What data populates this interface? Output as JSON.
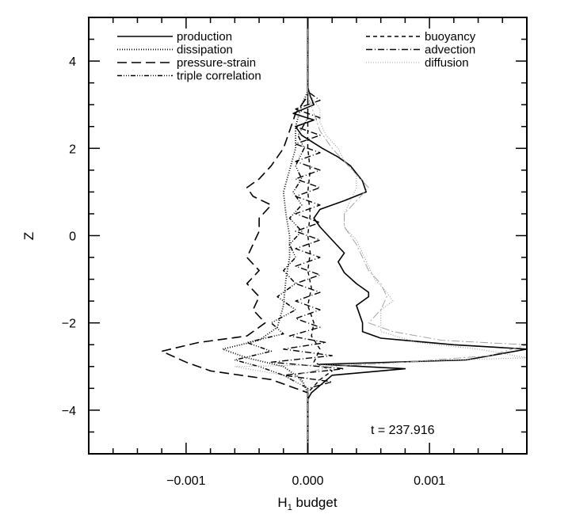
{
  "chart_data": {
    "type": "line",
    "xlabel": "H",
    "xlabel_subscript": "1",
    "xlabel_suffix": " budget",
    "ylabel": "Z",
    "xlim": [
      -0.0018,
      0.0018
    ],
    "ylim": [
      -5,
      5
    ],
    "x_ticks": [
      -0.001,
      0.0,
      0.001
    ],
    "x_tick_labels": [
      "−0.001",
      "0.000",
      "0.001"
    ],
    "y_ticks": [
      -4,
      -2,
      0,
      2,
      4
    ],
    "y_tick_labels": [
      "−4",
      "−2",
      "0",
      "2",
      "4"
    ],
    "annotation": "t = 237.916",
    "legend_placement": "top",
    "series": [
      {
        "name": "production",
        "dash": "solid",
        "color": "#000000",
        "width": 1.6,
        "points": [
          [
            0,
            -5
          ],
          [
            0,
            -3.75
          ],
          [
            3e-05,
            -3.6
          ],
          [
            0.0002,
            -3.2
          ],
          [
            0.0008,
            -3.05
          ],
          [
            0.0001,
            -2.95
          ],
          [
            0.0013,
            -2.85
          ],
          [
            0.0016,
            -2.7
          ],
          [
            0.0018,
            -2.6
          ],
          [
            0.0012,
            -2.5
          ],
          [
            0.0006,
            -2.35
          ],
          [
            0.00045,
            -2.2
          ],
          [
            0.00045,
            -2.0
          ],
          [
            0.0004,
            -1.6
          ],
          [
            0.0005,
            -1.4
          ],
          [
            0.0005,
            -1.3
          ],
          [
            0.0004,
            -1.1
          ],
          [
            0.0003,
            -0.85
          ],
          [
            0.00025,
            -0.6
          ],
          [
            0.0003,
            -0.4
          ],
          [
            0.0002,
            -0.1
          ],
          [
            0.0001,
            0.2
          ],
          [
            5e-05,
            0.4
          ],
          [
            0.0001,
            0.6
          ],
          [
            0.0003,
            0.8
          ],
          [
            0.00048,
            1.0
          ],
          [
            0.00045,
            1.25
          ],
          [
            0.00035,
            1.6
          ],
          [
            0.00025,
            1.8
          ],
          [
            0.00012,
            2.0
          ],
          [
            -5e-05,
            2.3
          ],
          [
            -0.0001,
            2.5
          ],
          [
            5e-05,
            2.65
          ],
          [
            -0.00012,
            2.8
          ],
          [
            5e-05,
            3.0
          ],
          [
            2e-05,
            3.2
          ],
          [
            0,
            3.4
          ],
          [
            0,
            5
          ]
        ]
      },
      {
        "name": "dissipation",
        "dash": "1,2",
        "color": "#000000",
        "width": 1.8,
        "points": [
          [
            0,
            -5
          ],
          [
            0,
            -3.6
          ],
          [
            -5e-05,
            -3.3
          ],
          [
            -0.0002,
            -3.0
          ],
          [
            -0.0005,
            -2.8
          ],
          [
            -0.0007,
            -2.6
          ],
          [
            -0.0004,
            -2.4
          ],
          [
            -0.00025,
            -2.1
          ],
          [
            -0.0002,
            -1.6
          ],
          [
            -0.00018,
            -1.0
          ],
          [
            -0.00015,
            -0.5
          ],
          [
            -0.00015,
            0
          ],
          [
            -0.00018,
            0.5
          ],
          [
            -0.0002,
            1.0
          ],
          [
            -0.00015,
            1.5
          ],
          [
            -0.0001,
            2.0
          ],
          [
            -0.0001,
            2.5
          ],
          [
            -5e-05,
            3.0
          ],
          [
            0,
            3.3
          ],
          [
            0,
            5
          ]
        ]
      },
      {
        "name": "pressure-strain",
        "dash": "12,6",
        "color": "#000000",
        "width": 1.6,
        "points": [
          [
            0,
            -5
          ],
          [
            0,
            -3.6
          ],
          [
            -0.0003,
            -3.3
          ],
          [
            -0.0008,
            -3.1
          ],
          [
            -0.001,
            -2.9
          ],
          [
            -0.0012,
            -2.65
          ],
          [
            -0.0009,
            -2.45
          ],
          [
            -0.0005,
            -2.3
          ],
          [
            -0.00035,
            -2.0
          ],
          [
            -0.00045,
            -1.7
          ],
          [
            -0.0004,
            -1.4
          ],
          [
            -0.0005,
            -1.1
          ],
          [
            -0.0004,
            -0.8
          ],
          [
            -0.0005,
            -0.5
          ],
          [
            -0.00045,
            -0.2
          ],
          [
            -0.0004,
            0.1
          ],
          [
            -0.0004,
            0.4
          ],
          [
            -0.0003,
            0.7
          ],
          [
            -0.00045,
            0.9
          ],
          [
            -0.0005,
            1.1
          ],
          [
            -0.0004,
            1.3
          ],
          [
            -0.0003,
            1.6
          ],
          [
            -0.0002,
            2.0
          ],
          [
            -0.00015,
            2.4
          ],
          [
            -0.0001,
            2.8
          ],
          [
            0,
            3.2
          ],
          [
            0,
            5
          ]
        ]
      },
      {
        "name": "triple correlation",
        "dash": "6,2,1,2,1,2,1,2",
        "color": "#000000",
        "width": 1.5,
        "points": [
          [
            0,
            -5
          ],
          [
            0,
            -3.5
          ],
          [
            -0.0002,
            -3.2
          ],
          [
            -0.0004,
            -3.0
          ],
          [
            -0.0006,
            -2.85
          ],
          [
            -0.0003,
            -2.65
          ],
          [
            -0.0005,
            -2.45
          ],
          [
            -0.0002,
            -2.25
          ],
          [
            -0.0003,
            -2.0
          ],
          [
            -0.0001,
            -1.7
          ],
          [
            -0.00025,
            -1.4
          ],
          [
            -0.0001,
            -1.1
          ],
          [
            -0.0002,
            -0.8
          ],
          [
            -0.0001,
            -0.5
          ],
          [
            -0.00015,
            -0.2
          ],
          [
            -5e-05,
            0.1
          ],
          [
            -0.00015,
            0.4
          ],
          [
            -5e-05,
            0.7
          ],
          [
            -0.00012,
            1.0
          ],
          [
            -5e-05,
            1.3
          ],
          [
            -0.0001,
            1.6
          ],
          [
            -3e-05,
            2.0
          ],
          [
            -8e-05,
            2.3
          ],
          [
            0,
            2.7
          ],
          [
            0,
            5
          ]
        ]
      },
      {
        "name": "buoyancy",
        "dash": "5,4",
        "color": "#000000",
        "width": 1.4,
        "points": [
          [
            0,
            -5
          ],
          [
            0,
            -3.6
          ],
          [
            0.0001,
            -3.3
          ],
          [
            0.0002,
            -3.1
          ],
          [
            5e-05,
            -2.9
          ],
          [
            0.0001,
            -2.6
          ],
          [
            3e-05,
            -2.3
          ],
          [
            5e-05,
            -2.0
          ],
          [
            0,
            -1.6
          ],
          [
            3e-05,
            -1.2
          ],
          [
            0,
            -0.8
          ],
          [
            2e-05,
            -0.4
          ],
          [
            0,
            0
          ],
          [
            2e-05,
            0.5
          ],
          [
            0,
            1.0
          ],
          [
            2e-05,
            1.5
          ],
          [
            0,
            2.0
          ],
          [
            0,
            5
          ]
        ]
      },
      {
        "name": "advection",
        "dash": "8,3,1,3",
        "color": "#000000",
        "width": 1.4,
        "points": [
          [
            0,
            -5
          ],
          [
            0,
            -3.5
          ],
          [
            0.0002,
            -3.35
          ],
          [
            -0.0002,
            -3.2
          ],
          [
            0.0003,
            -3.05
          ],
          [
            -0.0003,
            -2.9
          ],
          [
            0.0002,
            -2.75
          ],
          [
            -0.0002,
            -2.6
          ],
          [
            0.00015,
            -2.45
          ],
          [
            -0.00015,
            -2.3
          ],
          [
            0.0001,
            -2.1
          ],
          [
            -0.0001,
            -1.9
          ],
          [
            0.0001,
            -1.7
          ],
          [
            -0.0001,
            -1.5
          ],
          [
            0.0001,
            -1.3
          ],
          [
            -0.0001,
            -1.1
          ],
          [
            0.0001,
            -0.9
          ],
          [
            -0.0001,
            -0.7
          ],
          [
            0.0001,
            -0.5
          ],
          [
            -0.0001,
            -0.3
          ],
          [
            0.0001,
            -0.1
          ],
          [
            -0.0001,
            0.1
          ],
          [
            0.0001,
            0.3
          ],
          [
            -0.0001,
            0.5
          ],
          [
            0.0001,
            0.7
          ],
          [
            -0.0001,
            0.9
          ],
          [
            0.0001,
            1.1
          ],
          [
            -0.0001,
            1.3
          ],
          [
            0.0001,
            1.5
          ],
          [
            -0.0001,
            1.7
          ],
          [
            0.0001,
            1.9
          ],
          [
            -0.0001,
            2.1
          ],
          [
            0.0001,
            2.3
          ],
          [
            -0.0001,
            2.5
          ],
          [
            0.0001,
            2.7
          ],
          [
            -0.0001,
            2.9
          ],
          [
            0.0001,
            3.1
          ],
          [
            0,
            3.3
          ],
          [
            0,
            5
          ]
        ]
      },
      {
        "name": "diffusion",
        "dash": "1,2",
        "color": "#9a9a9a",
        "width": 1.1,
        "points": [
          [
            0,
            -5
          ],
          [
            0,
            -3.5
          ],
          [
            -0.0002,
            -3.2
          ],
          [
            -0.0006,
            -3.0
          ],
          [
            0.0004,
            -2.95
          ],
          [
            0.0012,
            -2.85
          ],
          [
            0.0018,
            -2.8
          ],
          [
            0.0014,
            -2.6
          ],
          [
            0.0009,
            -2.45
          ],
          [
            0.0006,
            -2.2
          ],
          [
            0.0006,
            -2.0
          ],
          [
            0.0006,
            -1.7
          ],
          [
            0.0007,
            -1.5
          ],
          [
            0.00065,
            -1.3
          ],
          [
            0.00055,
            -1.0
          ],
          [
            0.0005,
            -0.7
          ],
          [
            0.00045,
            -0.4
          ],
          [
            0.0004,
            -0.1
          ],
          [
            0.0003,
            0.2
          ],
          [
            0.0003,
            0.5
          ],
          [
            0.00035,
            0.8
          ],
          [
            0.0004,
            1.1
          ],
          [
            0.0004,
            1.4
          ],
          [
            0.0003,
            1.7
          ],
          [
            0.00025,
            2.0
          ],
          [
            0.00015,
            2.3
          ],
          [
            0.0001,
            2.6
          ],
          [
            0.0001,
            2.9
          ],
          [
            5e-05,
            3.1
          ],
          [
            0,
            3.3
          ],
          [
            0,
            5
          ]
        ]
      },
      {
        "name": "",
        "dash": "10,3,2,3",
        "color": "#9a9a9a",
        "width": 0.9,
        "points": [
          [
            0,
            -5
          ],
          [
            0,
            -3.5
          ],
          [
            -0.0001,
            -3.2
          ],
          [
            0.0002,
            -3.0
          ],
          [
            0.0008,
            -2.9
          ],
          [
            0.0015,
            -2.75
          ],
          [
            0.0018,
            -2.5
          ],
          [
            0.0011,
            -2.4
          ],
          [
            0.0007,
            -2.2
          ],
          [
            0.0005,
            -2.0
          ],
          [
            0.0006,
            -1.7
          ],
          [
            0.00065,
            -1.4
          ],
          [
            0.0006,
            -1.1
          ],
          [
            0.0005,
            -0.8
          ],
          [
            0.00045,
            -0.5
          ],
          [
            0.0004,
            -0.2
          ],
          [
            0.0003,
            0.2
          ],
          [
            0.0003,
            0.5
          ],
          [
            0.0004,
            0.8
          ],
          [
            0.0005,
            1.1
          ],
          [
            0.0004,
            1.4
          ],
          [
            0.0003,
            1.7
          ],
          [
            0.0002,
            2.0
          ],
          [
            0.0001,
            2.4
          ],
          [
            5e-05,
            2.8
          ],
          [
            0,
            3.2
          ],
          [
            0,
            5
          ]
        ]
      }
    ]
  }
}
